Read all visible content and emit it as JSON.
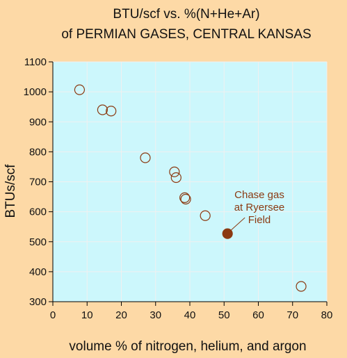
{
  "chart_data": {
    "type": "scatter",
    "title": "BTU/scf vs. %(N+He+Ar)",
    "subtitle": "of PERMIAN GASES, CENTRAL KANSAS",
    "xlabel": "volume % of nitrogen, helium, and argon",
    "ylabel": "BTUs/scf",
    "xlim": [
      0,
      80
    ],
    "ylim": [
      300,
      1100
    ],
    "xticks": [
      0,
      10,
      20,
      30,
      40,
      50,
      60,
      70,
      80
    ],
    "yticks": [
      300,
      400,
      500,
      600,
      700,
      800,
      900,
      1000,
      1100
    ],
    "grid": true,
    "series": [
      {
        "marker": "open-circle",
        "points": [
          {
            "x": 7.8,
            "y": 1007
          },
          {
            "x": 14.5,
            "y": 940
          },
          {
            "x": 17.0,
            "y": 936
          },
          {
            "x": 27.0,
            "y": 780
          },
          {
            "x": 35.5,
            "y": 733
          },
          {
            "x": 36.0,
            "y": 714
          },
          {
            "x": 38.5,
            "y": 647
          },
          {
            "x": 38.8,
            "y": 642
          },
          {
            "x": 44.5,
            "y": 587
          },
          {
            "x": 72.5,
            "y": 351
          }
        ]
      },
      {
        "marker": "filled-circle",
        "points": [
          {
            "x": 51.0,
            "y": 527
          }
        ]
      }
    ],
    "annotation": {
      "lines": [
        "Chase gas",
        "at Ryersee",
        "Field"
      ],
      "x": 51.0,
      "y": 527
    },
    "colors": {
      "background": "#fdd9a6",
      "plot_area": "#ccf7fc",
      "grid": "#f0f0f0",
      "marker": "#8b3a12",
      "annotation_text": "#8b3a12"
    }
  }
}
